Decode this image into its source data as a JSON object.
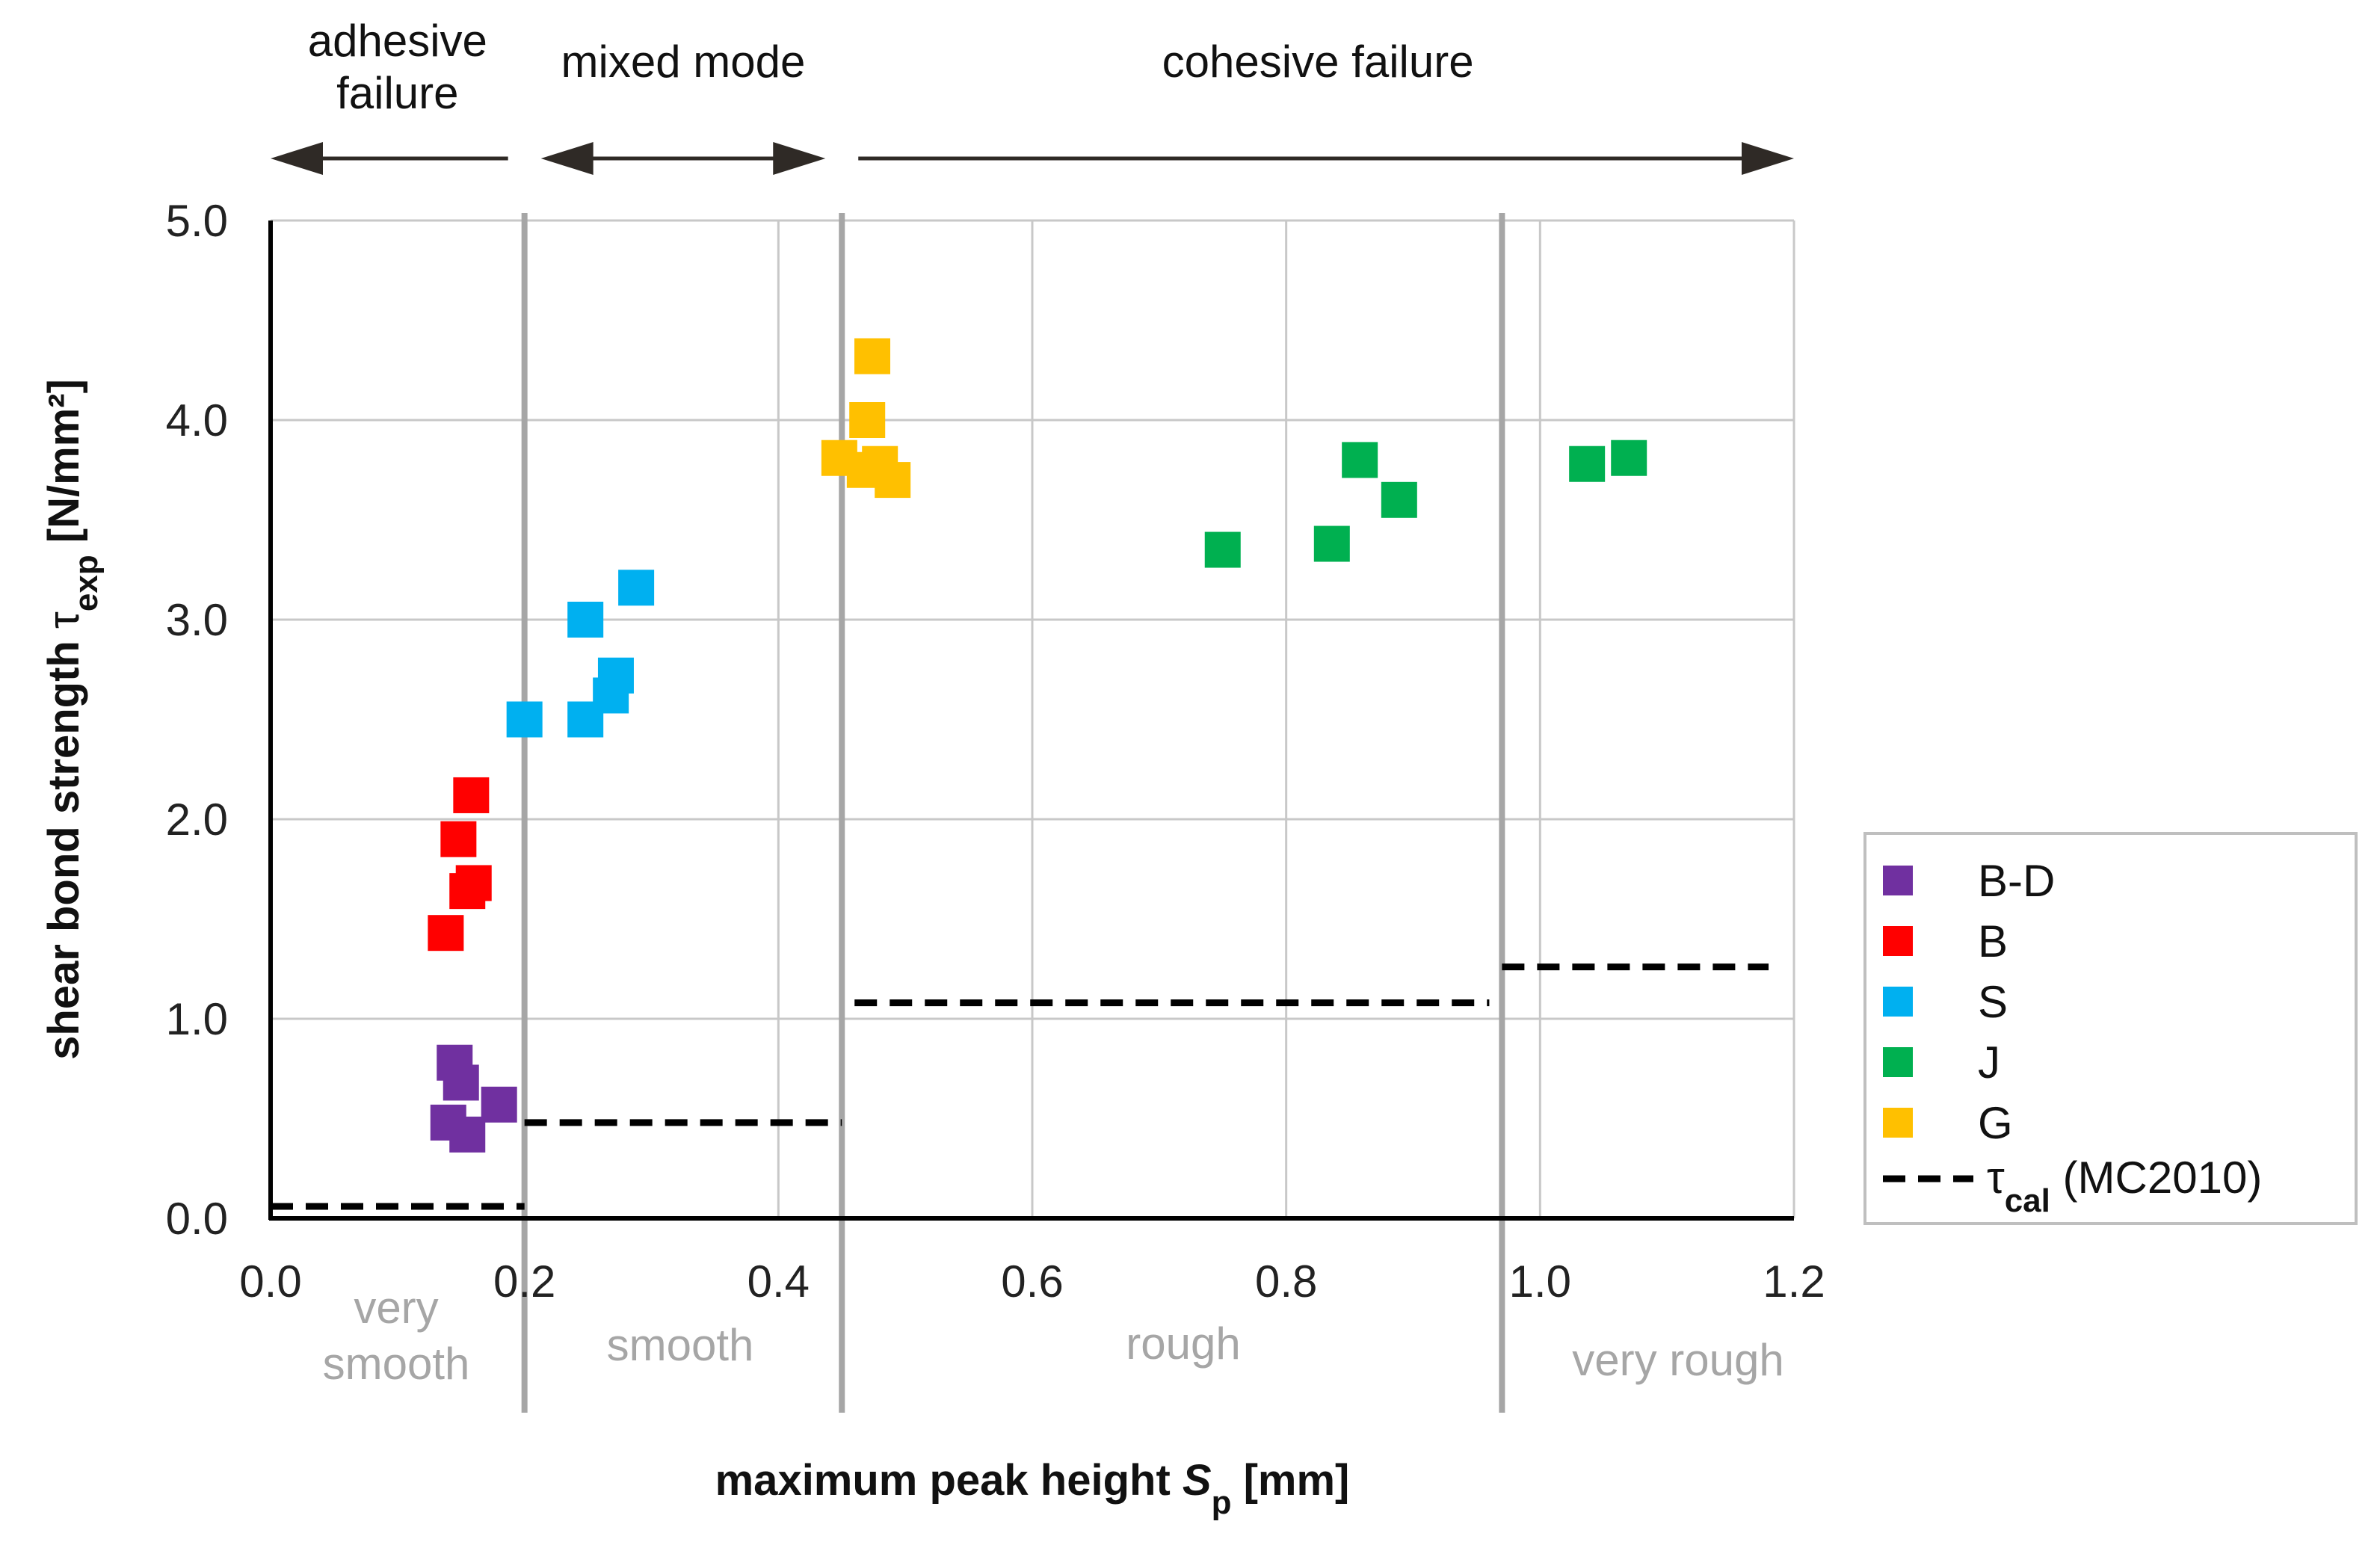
{
  "chart_data": {
    "type": "scatter",
    "xlabel_prefix": "maximum peak height ",
    "xlabel_symbol": "S",
    "xlabel_sub": "p",
    "xlabel_suffix": " [mm]",
    "ylabel_prefix": "shear bond strength ",
    "ylabel_symbol": "τ",
    "ylabel_sub": "exp",
    "ylabel_suffix": " [N/mm²]",
    "xlim": [
      0,
      1.2
    ],
    "ylim": [
      0,
      5
    ],
    "x_ticks": [
      "0.0",
      "0.2",
      "0.4",
      "0.6",
      "0.8",
      "1.0",
      "1.2"
    ],
    "y_ticks": [
      "0.0",
      "1.0",
      "2.0",
      "3.0",
      "4.0",
      "5.0"
    ],
    "grid": true,
    "failure_modes": [
      {
        "label_lines": [
          "adhesive",
          "failure"
        ],
        "from": 0.0,
        "to": 0.2
      },
      {
        "label_lines": [
          "mixed mode"
        ],
        "from": 0.2,
        "to": 0.45
      },
      {
        "label_lines": [
          "cohesive failure"
        ],
        "from": 0.45,
        "to": 1.2
      }
    ],
    "roughness_classes": [
      {
        "label_lines": [
          "very",
          "smooth"
        ],
        "from": 0.0,
        "to": 0.2
      },
      {
        "label_lines": [
          "smooth"
        ],
        "from": 0.2,
        "to": 0.45
      },
      {
        "label_lines": [
          "rough"
        ],
        "from": 0.45,
        "to": 0.97
      },
      {
        "label_lines": [
          "very rough"
        ],
        "from": 0.97,
        "to": 1.2
      }
    ],
    "class_boundaries": [
      0.2,
      0.45,
      0.97
    ],
    "series": [
      {
        "name": "B-D",
        "color": "#7030a0",
        "points": [
          [
            0.145,
            0.78
          ],
          [
            0.15,
            0.68
          ],
          [
            0.14,
            0.48
          ],
          [
            0.155,
            0.42
          ],
          [
            0.18,
            0.57
          ]
        ]
      },
      {
        "name": "B",
        "color": "#ff0000",
        "points": [
          [
            0.158,
            2.12
          ],
          [
            0.148,
            1.9
          ],
          [
            0.16,
            1.68
          ],
          [
            0.155,
            1.64
          ],
          [
            0.138,
            1.43
          ]
        ]
      },
      {
        "name": "S",
        "color": "#00b0f0",
        "points": [
          [
            0.2,
            2.5
          ],
          [
            0.248,
            3.0
          ],
          [
            0.288,
            3.16
          ],
          [
            0.272,
            2.72
          ],
          [
            0.268,
            2.62
          ],
          [
            0.248,
            2.5
          ]
        ]
      },
      {
        "name": "J",
        "color": "#00b050",
        "points": [
          [
            0.75,
            3.35
          ],
          [
            0.836,
            3.38
          ],
          [
            0.858,
            3.8
          ],
          [
            0.889,
            3.6
          ],
          [
            1.037,
            3.78
          ],
          [
            1.07,
            3.81
          ]
        ]
      },
      {
        "name": "G",
        "color": "#ffc000",
        "points": [
          [
            0.474,
            4.32
          ],
          [
            0.47,
            4.0
          ],
          [
            0.448,
            3.81
          ],
          [
            0.468,
            3.75
          ],
          [
            0.48,
            3.78
          ],
          [
            0.49,
            3.7
          ]
        ]
      }
    ],
    "reference": {
      "name": "τcal (MC2010)",
      "symbol": "τ",
      "sub": "cal",
      "suffix": " (MC2010)",
      "segments": [
        {
          "from": 0.0,
          "to": 0.2,
          "value": 0.06
        },
        {
          "from": 0.2,
          "to": 0.45,
          "value": 0.48
        },
        {
          "from": 0.46,
          "to": 0.96,
          "value": 1.08
        },
        {
          "from": 0.97,
          "to": 1.18,
          "value": 1.26
        }
      ]
    },
    "legend_position": "right"
  }
}
